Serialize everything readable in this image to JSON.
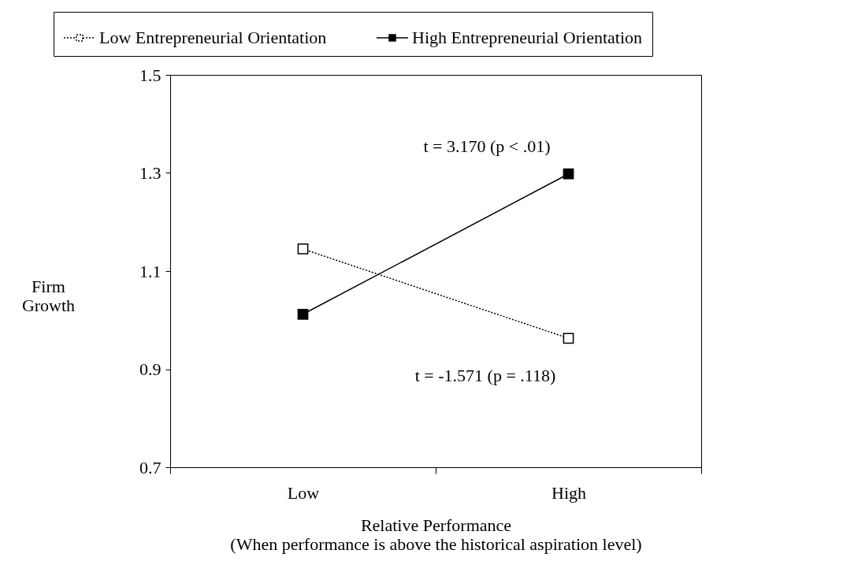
{
  "chart_data": {
    "type": "line",
    "categories": [
      "Low",
      "High"
    ],
    "series": [
      {
        "name": "Low Entrepreneurial Orientation",
        "color": "#000000",
        "line_style": "dotted",
        "values": [
          1.145,
          0.963
        ]
      },
      {
        "name": "High Entrepreneurial Orientation",
        "color": "#000000",
        "line_style": "solid",
        "values": [
          1.012,
          1.298
        ]
      }
    ],
    "ylabel": "Firm Growth",
    "xlabel": "Relative Performance",
    "annotations": [
      "t = 3.170 (p < .01)",
      "t = -1.571 (p = .118)",
      "(When performance is above the historical aspiration level)"
    ],
    "ylim": [
      0.7,
      1.5
    ],
    "yticks": [
      0.7,
      0.9,
      1.1,
      1.3,
      1.5
    ],
    "marker": "square",
    "legend": "top",
    "grid": false
  }
}
